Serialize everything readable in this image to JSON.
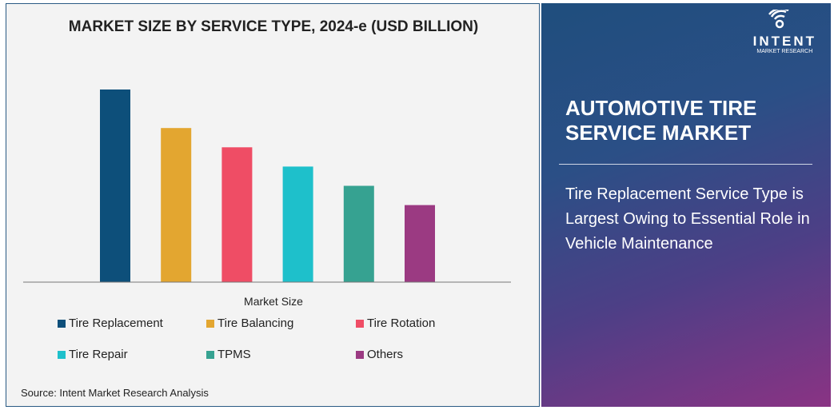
{
  "chart_data": {
    "type": "bar",
    "title": "MARKET SIZE BY SERVICE TYPE, 2024-e (USD BILLION)",
    "xlabel": "Market Size",
    "ylabel": "",
    "categories": [
      "Tire Replacement",
      "Tire Balancing",
      "Tire Rotation",
      "Tire Repair",
      "TPMS",
      "Others"
    ],
    "values": [
      10,
      8,
      7,
      6,
      5,
      4
    ],
    "colors": [
      "#0d4f7a",
      "#e3a630",
      "#ef4d65",
      "#1ec0cb",
      "#36a291",
      "#9b3a82"
    ],
    "ylim": [
      0,
      10
    ],
    "grid": false,
    "legend_placement": "bottom"
  },
  "source": "Source: Intent Market Research Analysis",
  "panel": {
    "logo_main": "INTENT",
    "logo_sub": "MARKET RESEARCH",
    "title": "AUTOMOTIVE TIRE SERVICE MARKET",
    "description": "Tire Replacement Service Type is Largest Owing to Essential Role in Vehicle Maintenance"
  }
}
